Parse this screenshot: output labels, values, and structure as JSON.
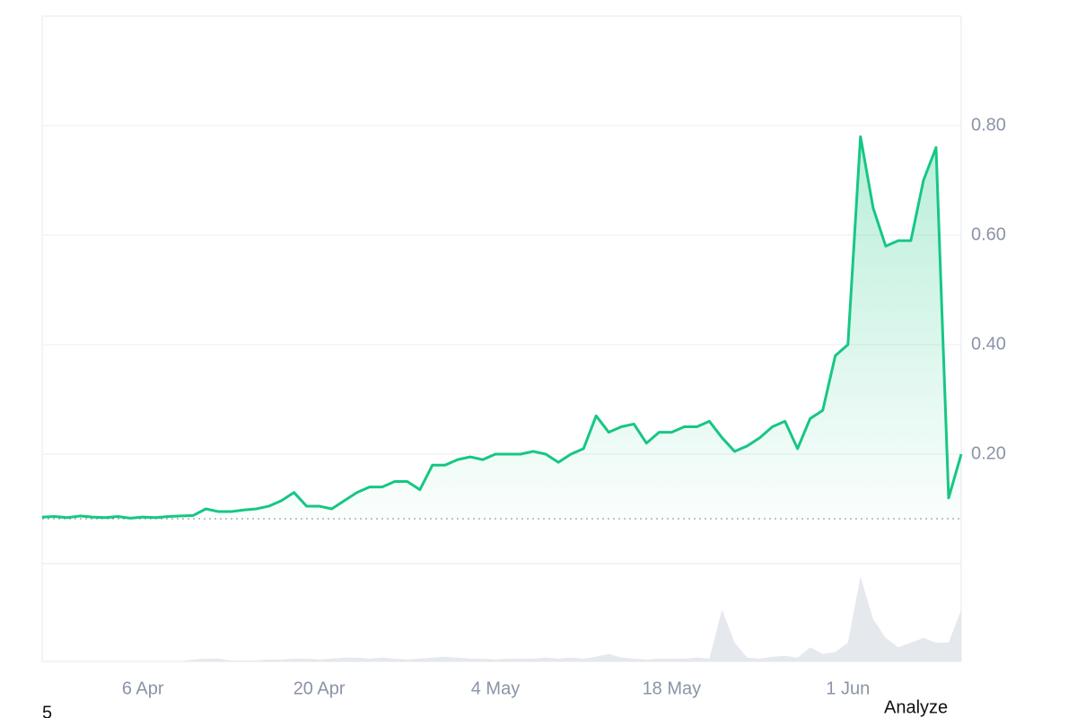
{
  "chart_data": {
    "type": "line",
    "categories": [
      null,
      null,
      null,
      null,
      null,
      null,
      null,
      null,
      "6 Apr",
      null,
      null,
      null,
      null,
      null,
      null,
      null,
      null,
      null,
      null,
      null,
      null,
      null,
      "20 Apr",
      null,
      null,
      null,
      null,
      null,
      null,
      null,
      null,
      null,
      null,
      null,
      null,
      null,
      "4 May",
      null,
      null,
      null,
      null,
      null,
      null,
      null,
      null,
      null,
      null,
      null,
      null,
      null,
      "18 May",
      null,
      null,
      null,
      null,
      null,
      null,
      null,
      null,
      null,
      null,
      null,
      null,
      null,
      "1 Jun",
      null,
      null,
      null,
      null,
      null,
      null,
      null,
      null,
      null
    ],
    "values": [
      0.085,
      0.086,
      0.084,
      0.087,
      0.085,
      0.084,
      0.086,
      0.083,
      0.085,
      0.084,
      0.086,
      0.087,
      0.088,
      0.1,
      0.095,
      0.095,
      0.098,
      0.1,
      0.105,
      0.115,
      0.13,
      0.105,
      0.105,
      0.1,
      0.115,
      0.13,
      0.14,
      0.14,
      0.15,
      0.15,
      0.135,
      0.18,
      0.18,
      0.19,
      0.195,
      0.19,
      0.2,
      0.2,
      0.2,
      0.205,
      0.2,
      0.185,
      0.2,
      0.21,
      0.27,
      0.24,
      0.25,
      0.255,
      0.22,
      0.24,
      0.24,
      0.25,
      0.25,
      0.26,
      0.23,
      0.205,
      0.215,
      0.23,
      0.25,
      0.26,
      0.21,
      0.265,
      0.28,
      0.38,
      0.4,
      0.78,
      0.65,
      0.58,
      0.59,
      0.59,
      0.7,
      0.76,
      0.12,
      0.2
    ],
    "color": "#16c784",
    "ylim": [
      0,
      1.0
    ],
    "yticks": [
      {
        "value": 0.2,
        "label": "0.20"
      },
      {
        "value": 0.4,
        "label": "0.40"
      },
      {
        "value": 0.6,
        "label": "0.60"
      },
      {
        "value": 0.8,
        "label": "0.80"
      }
    ],
    "grid": true,
    "baseline": 0.082,
    "volume": [
      0,
      0,
      0,
      0,
      0,
      0,
      0,
      0,
      0,
      0,
      0,
      0,
      2,
      3,
      3,
      1,
      1,
      1,
      2,
      2,
      3,
      3,
      2,
      3,
      4,
      4,
      3,
      4,
      3,
      2,
      3,
      4,
      5,
      4,
      3,
      3,
      2,
      3,
      3,
      3,
      4,
      3,
      4,
      3,
      5,
      8,
      4,
      3,
      2,
      3,
      3,
      3,
      4,
      3,
      55,
      20,
      4,
      3,
      5,
      6,
      4,
      15,
      8,
      10,
      20,
      90,
      45,
      25,
      15,
      20,
      25,
      20,
      20,
      55
    ],
    "volume_color": "#e5e8ec",
    "volume_ylim": [
      0,
      100
    ],
    "footer_left": "5",
    "footer_right": "Analyze"
  }
}
